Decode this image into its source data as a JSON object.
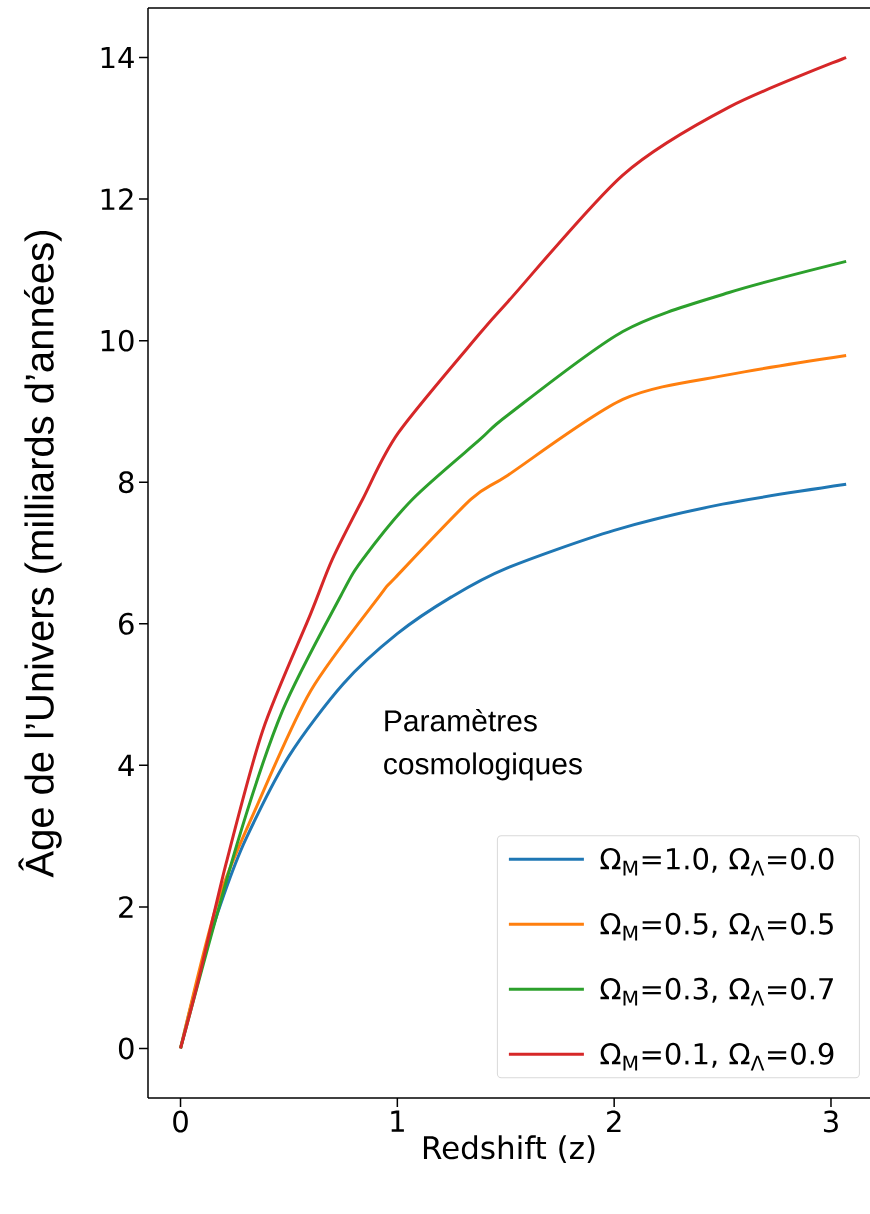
{
  "chart_data": {
    "type": "line",
    "xlabel": "Redshift (z)",
    "ylabel": "Âge de l’Univers (milliards d’années)",
    "legend_title": "Paramètres cosmologiques",
    "legend": "bottom right",
    "grid": false,
    "xlim": [
      -0.15,
      3.18
    ],
    "ylim": [
      -0.7,
      14.7
    ],
    "xticks": [
      0,
      1,
      2,
      3
    ],
    "yticks": [
      0,
      2,
      4,
      6,
      8,
      10,
      12,
      14
    ],
    "series": [
      {
        "name": "Ω$_{M}$=1.0, Ω$_{Λ}$=0.0",
        "color": "#1f77b4",
        "x": [
          0,
          0.1,
          0.2,
          0.3,
          0.5,
          0.75,
          1,
          1.25,
          1.5,
          2,
          2.5,
          3.07
        ],
        "values": [
          0,
          1.21,
          2.17,
          2.95,
          4.13,
          5.15,
          5.86,
          6.38,
          6.78,
          7.32,
          7.69,
          7.97
        ]
      },
      {
        "name": "Ω$_{M}$=0.5, Ω$_{Λ}$=0.5",
        "color": "#ff7f0e",
        "x": [
          0,
          0.17,
          0.35,
          0.6,
          0.92,
          0.99,
          1.34,
          1.51,
          2.04,
          2.53,
          3.07
        ],
        "values": [
          0,
          2.06,
          3.41,
          5.05,
          6.4,
          6.65,
          7.76,
          8.1,
          9.17,
          9.52,
          9.79
        ]
      },
      {
        "name": "Ω$_{M}$=0.3, Ω$_{Λ}$=0.7",
        "color": "#2ca02c",
        "x": [
          0,
          0.26,
          0.47,
          0.74,
          0.84,
          1.07,
          1.38,
          1.51,
          2.04,
          2.53,
          3.07
        ],
        "values": [
          0,
          2.88,
          4.77,
          6.4,
          6.91,
          7.76,
          8.6,
          8.95,
          10.13,
          10.68,
          11.12
        ]
      },
      {
        "name": "Ω$_{M}$=0.1, Ω$_{Λ}$=0.9",
        "color": "#d62728",
        "x": [
          0,
          0.083,
          0.21,
          0.38,
          0.6,
          0.7,
          0.84,
          1.005,
          1.38,
          1.51,
          2.04,
          2.53,
          3.07
        ],
        "values": [
          0,
          0.97,
          2.61,
          4.5,
          6.14,
          6.91,
          7.76,
          8.7,
          10.1,
          10.55,
          12.34,
          13.3,
          14.0
        ]
      }
    ]
  }
}
